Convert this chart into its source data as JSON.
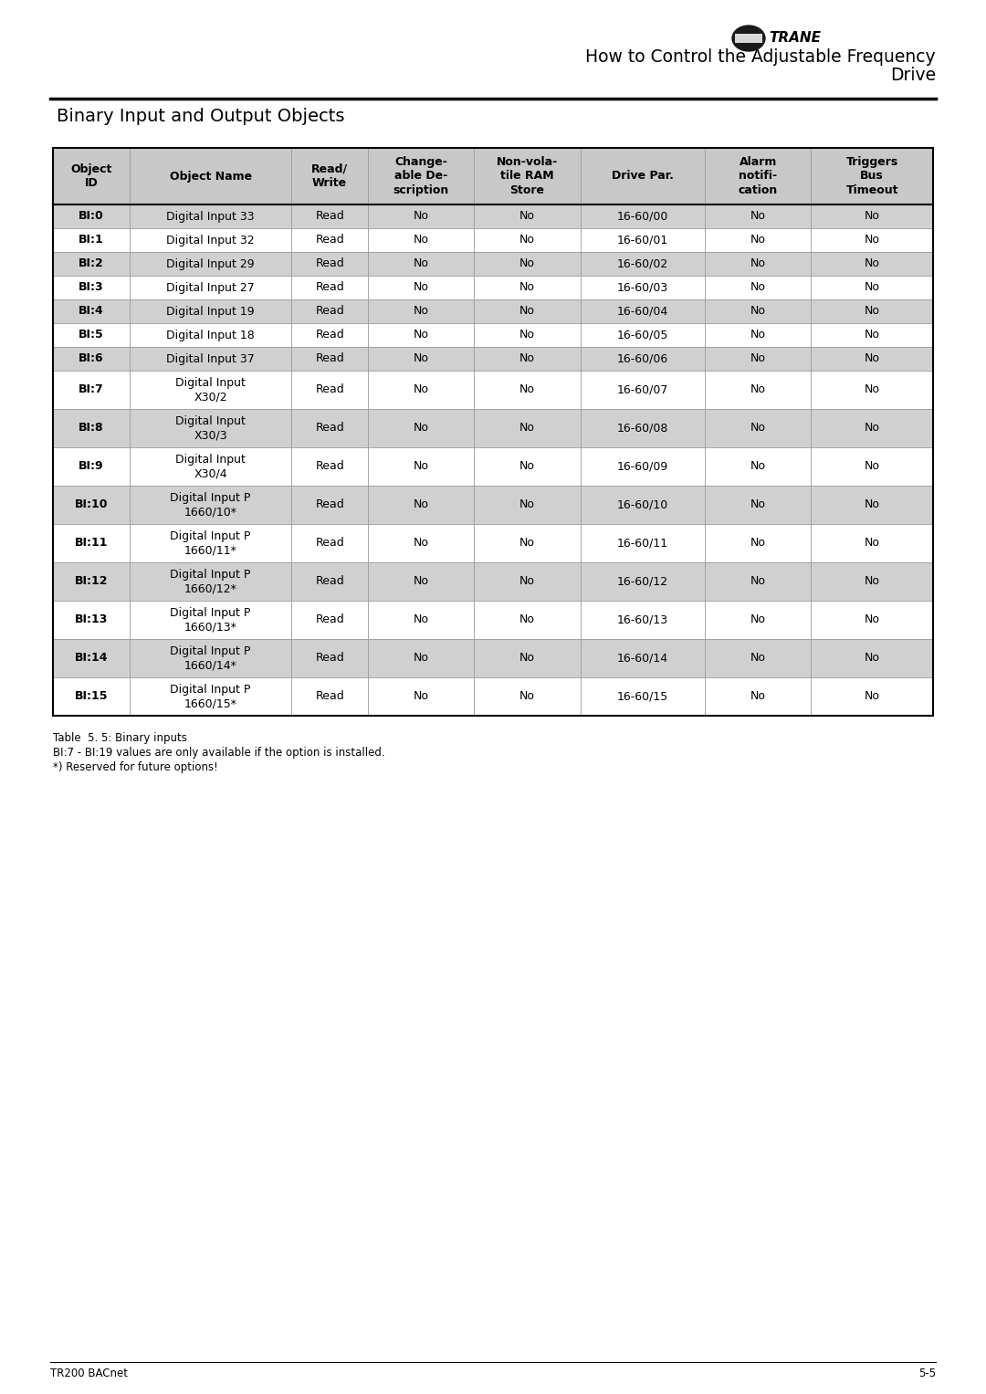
{
  "title_line1": "How to Control the Adjustable Frequency",
  "title_line2": "Drive",
  "section_title": "Binary Input and Output Objects",
  "header": [
    "Object\nID",
    "Object Name",
    "Read/\nWrite",
    "Change-\nable De-\nscription",
    "Non-vola-\ntile RAM\nStore",
    "Drive Par.",
    "Alarm\nnotifi-\ncation",
    "Triggers\nBus\nTimeout"
  ],
  "rows": [
    [
      "BI:0",
      "Digital Input 33",
      "Read",
      "No",
      "No",
      "16-60/00",
      "No",
      "No"
    ],
    [
      "BI:1",
      "Digital Input 32",
      "Read",
      "No",
      "No",
      "16-60/01",
      "No",
      "No"
    ],
    [
      "BI:2",
      "Digital Input 29",
      "Read",
      "No",
      "No",
      "16-60/02",
      "No",
      "No"
    ],
    [
      "BI:3",
      "Digital Input 27",
      "Read",
      "No",
      "No",
      "16-60/03",
      "No",
      "No"
    ],
    [
      "BI:4",
      "Digital Input 19",
      "Read",
      "No",
      "No",
      "16-60/04",
      "No",
      "No"
    ],
    [
      "BI:5",
      "Digital Input 18",
      "Read",
      "No",
      "No",
      "16-60/05",
      "No",
      "No"
    ],
    [
      "BI:6",
      "Digital Input 37",
      "Read",
      "No",
      "No",
      "16-60/06",
      "No",
      "No"
    ],
    [
      "BI:7",
      "Digital Input\nX30/2",
      "Read",
      "No",
      "No",
      "16-60/07",
      "No",
      "No"
    ],
    [
      "BI:8",
      "Digital Input\nX30/3",
      "Read",
      "No",
      "No",
      "16-60/08",
      "No",
      "No"
    ],
    [
      "BI:9",
      "Digital Input\nX30/4",
      "Read",
      "No",
      "No",
      "16-60/09",
      "No",
      "No"
    ],
    [
      "BI:10",
      "Digital Input P\n1660/10*",
      "Read",
      "No",
      "No",
      "16-60/10",
      "No",
      "No"
    ],
    [
      "BI:11",
      "Digital Input P\n1660/11*",
      "Read",
      "No",
      "No",
      "16-60/11",
      "No",
      "No"
    ],
    [
      "BI:12",
      "Digital Input P\n1660/12*",
      "Read",
      "No",
      "No",
      "16-60/12",
      "No",
      "No"
    ],
    [
      "BI:13",
      "Digital Input P\n1660/13*",
      "Read",
      "No",
      "No",
      "16-60/13",
      "No",
      "No"
    ],
    [
      "BI:14",
      "Digital Input P\n1660/14*",
      "Read",
      "No",
      "No",
      "16-60/14",
      "No",
      "No"
    ],
    [
      "BI:15",
      "Digital Input P\n1660/15*",
      "Read",
      "No",
      "No",
      "16-60/15",
      "No",
      "No"
    ]
  ],
  "shaded_rows": [
    0,
    2,
    4,
    6,
    8,
    10,
    12,
    14
  ],
  "shade_color": "#d0d0d0",
  "header_shade_color": "#c8c8c8",
  "footnote1": "Table  5. 5: Binary inputs",
  "footnote2": "BI:7 - BI:19 values are only available if the option is installed.",
  "footnote3": "*) Reserved for future options!",
  "footer_left": "TR200 BACnet",
  "footer_right": "5-5"
}
